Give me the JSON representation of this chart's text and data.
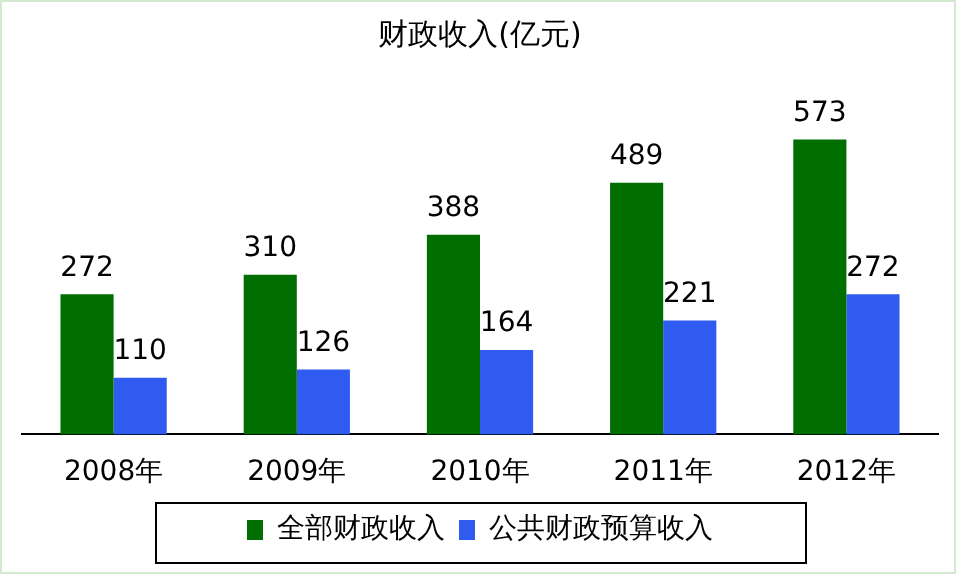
{
  "chart_data": {
    "type": "bar",
    "title": "财政收入(亿元)",
    "categories": [
      "2008年",
      "2009年",
      "2010年",
      "2011年",
      "2012年"
    ],
    "series": [
      {
        "name": "全部财政收入",
        "color": "#006e00",
        "values": [
          272,
          310,
          388,
          489,
          573
        ]
      },
      {
        "name": "公共财政预算收入",
        "color": "#2f5bf0",
        "values": [
          110,
          126,
          164,
          221,
          272
        ]
      }
    ],
    "data_labels": true,
    "grid": false,
    "legend": "bottom"
  }
}
